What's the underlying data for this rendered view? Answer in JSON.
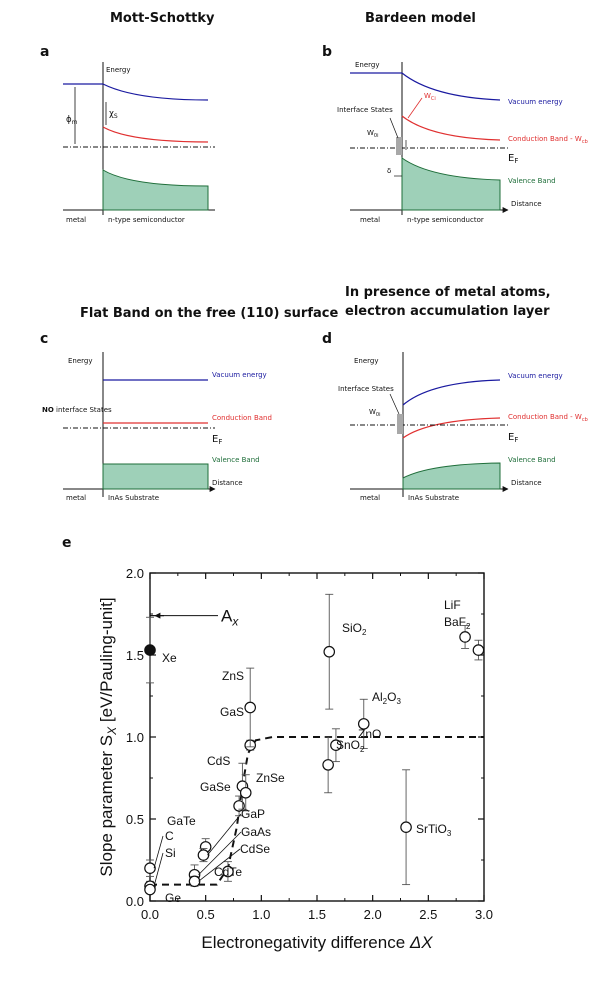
{
  "panels": {
    "a": {
      "letter": "a",
      "title": "Mott-Schottky",
      "energy": "Energy",
      "chi": "χ",
      "chi_sub": "S",
      "phi": "ϕ",
      "phi_sub": "m",
      "metal": "metal",
      "semi": "n-type semiconductor"
    },
    "b": {
      "letter": "b",
      "title": "Bardeen model",
      "energy": "Energy",
      "interface": "Interface States",
      "w0": "W",
      "w0_sub": "0i",
      "wci": "W",
      "wci_sub": "Ci",
      "delta": "δ",
      "vac": "Vacuum energy",
      "cond": "Conduction Band - W",
      "cond_sub": "cb",
      "ef": "E",
      "ef_sub": "F",
      "val": "Valence Band",
      "dist": "Distance",
      "metal": "metal",
      "semi": "n-type semiconductor"
    },
    "c": {
      "letter": "c",
      "title": "Flat Band on the free (110) surface",
      "energy": "Energy",
      "no_bold": "NO",
      "no_rest": " interface States",
      "vac": "Vacuum energy",
      "cond": "Conduction Band",
      "ef": "E",
      "ef_sub": "F",
      "val": "Valence Band",
      "dist": "Distance",
      "metal": "metal",
      "semi": "InAs Substrate"
    },
    "d": {
      "letter": "d",
      "title1": "In presence of metal atoms,",
      "title2": "electron accumulation layer",
      "energy": "Energy",
      "interface": "Interface States",
      "w0": "W",
      "w0_sub": "0i",
      "vac": "Vacuum energy",
      "cond": "Conduction Band - W",
      "cond_sub": "cb",
      "ef": "E",
      "ef_sub": "F",
      "val": "Valence Band",
      "dist": "Distance",
      "metal": "metal",
      "semi": "InAs Substrate"
    },
    "e": {
      "letter": "e"
    }
  },
  "chart_data": {
    "type": "scatter",
    "xlabel": "Electronegativity difference ΔX",
    "ylabel": "Slope parameter S_X [eV/Pauling-unit]",
    "xlim": [
      0,
      3.0
    ],
    "ylim": [
      0,
      2.0
    ],
    "xticks": [
      "0.0",
      "0.5",
      "1.0",
      "1.5",
      "2.0",
      "2.5",
      "3.0"
    ],
    "yticks": [
      "0.0",
      "0.5",
      "1.0",
      "1.5",
      "2.0"
    ],
    "ax_label": "A",
    "ax_sub": "x",
    "ax_value": 1.74,
    "points": [
      {
        "name": "Xe",
        "x": 0.0,
        "y": 1.53,
        "err": 0.2,
        "filled": true
      },
      {
        "name": "C",
        "x": 0.0,
        "y": 0.2,
        "err": 0.05
      },
      {
        "name": "Si",
        "x": 0.0,
        "y": 0.09,
        "err": 0.03
      },
      {
        "name": "Ge",
        "x": 0.0,
        "y": 0.07,
        "err": 0.02
      },
      {
        "name": "GaTe",
        "x": 0.5,
        "y": 0.33,
        "err": 0.05
      },
      {
        "name": "GaP",
        "x": 0.48,
        "y": 0.28,
        "err": 0.04
      },
      {
        "name": "GaAs",
        "x": 0.4,
        "y": 0.16,
        "err": 0.06
      },
      {
        "name": "CdSe",
        "x": 0.4,
        "y": 0.12,
        "err": 0.03
      },
      {
        "name": "CdTe",
        "x": 0.7,
        "y": 0.18,
        "err": 0.06
      },
      {
        "name": "GaSe",
        "x": 0.8,
        "y": 0.58,
        "err": 0.06
      },
      {
        "name": "CdS",
        "x": 0.83,
        "y": 0.7,
        "err": 0.14
      },
      {
        "name": "ZnSe",
        "x": 0.86,
        "y": 0.66,
        "err": 0.11
      },
      {
        "name": "GaS",
        "x": 0.9,
        "y": 0.95,
        "err": 0.03
      },
      {
        "name": "ZnS",
        "x": 0.9,
        "y": 1.18,
        "err": 0.24
      },
      {
        "name": "SiO2",
        "x": 1.61,
        "y": 1.52,
        "err": 0.35
      },
      {
        "name": "SnO2",
        "x": 1.6,
        "y": 0.83,
        "err": 0.17
      },
      {
        "name": "ZnO",
        "x": 1.67,
        "y": 0.95,
        "err": 0.1
      },
      {
        "name": "Al2O3",
        "x": 1.92,
        "y": 1.08,
        "err": 0.15
      },
      {
        "name": "SrTiO3",
        "x": 2.3,
        "y": 0.45,
        "err": 0.35
      },
      {
        "name": "LiF",
        "x": 2.83,
        "y": 1.61,
        "err": 0.07
      },
      {
        "name": "BaF2",
        "x": 2.95,
        "y": 1.53,
        "err": 0.06
      }
    ],
    "fit_curve": [
      [
        0.0,
        0.1
      ],
      [
        0.35,
        0.1
      ],
      [
        0.6,
        0.1
      ],
      [
        0.7,
        0.2
      ],
      [
        0.78,
        0.45
      ],
      [
        0.83,
        0.7
      ],
      [
        0.88,
        0.9
      ],
      [
        0.95,
        0.98
      ],
      [
        1.1,
        1.0
      ],
      [
        3.0,
        1.0
      ]
    ]
  }
}
